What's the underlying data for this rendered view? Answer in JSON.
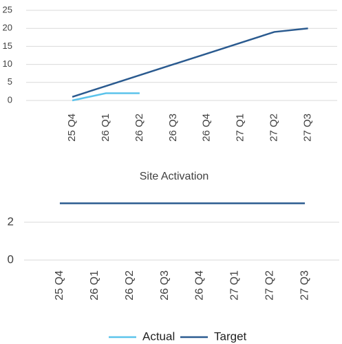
{
  "chart_data": [
    {
      "type": "line",
      "categories": [
        "25 Q4",
        "26 Q1",
        "26 Q2",
        "26 Q3",
        "26 Q4",
        "27 Q1",
        "27 Q2",
        "27 Q3"
      ],
      "series": [
        {
          "name": "Actual",
          "color": "#5bc3eb",
          "values": [
            0,
            2,
            2,
            null,
            null,
            null,
            null,
            null
          ]
        },
        {
          "name": "Target",
          "color": "#2a5a8f",
          "values": [
            1,
            4,
            7,
            10,
            13,
            16,
            19,
            20
          ]
        }
      ],
      "ylim": [
        0,
        25
      ],
      "yticks": [
        0,
        5,
        10,
        15,
        20,
        25
      ],
      "grid": true
    },
    {
      "type": "line",
      "title": "Site Activation",
      "categories": [
        "25 Q4",
        "26 Q1",
        "26 Q2",
        "26 Q3",
        "26 Q4",
        "27 Q1",
        "27 Q2",
        "27 Q3"
      ],
      "series": [
        {
          "name": "Target",
          "color": "#2a5a8f",
          "values": [
            3,
            3,
            3,
            3,
            3,
            3,
            3,
            3
          ]
        }
      ],
      "ylim": [
        0,
        3.4
      ],
      "yticks": [
        0,
        2
      ],
      "grid": true
    }
  ]
}
